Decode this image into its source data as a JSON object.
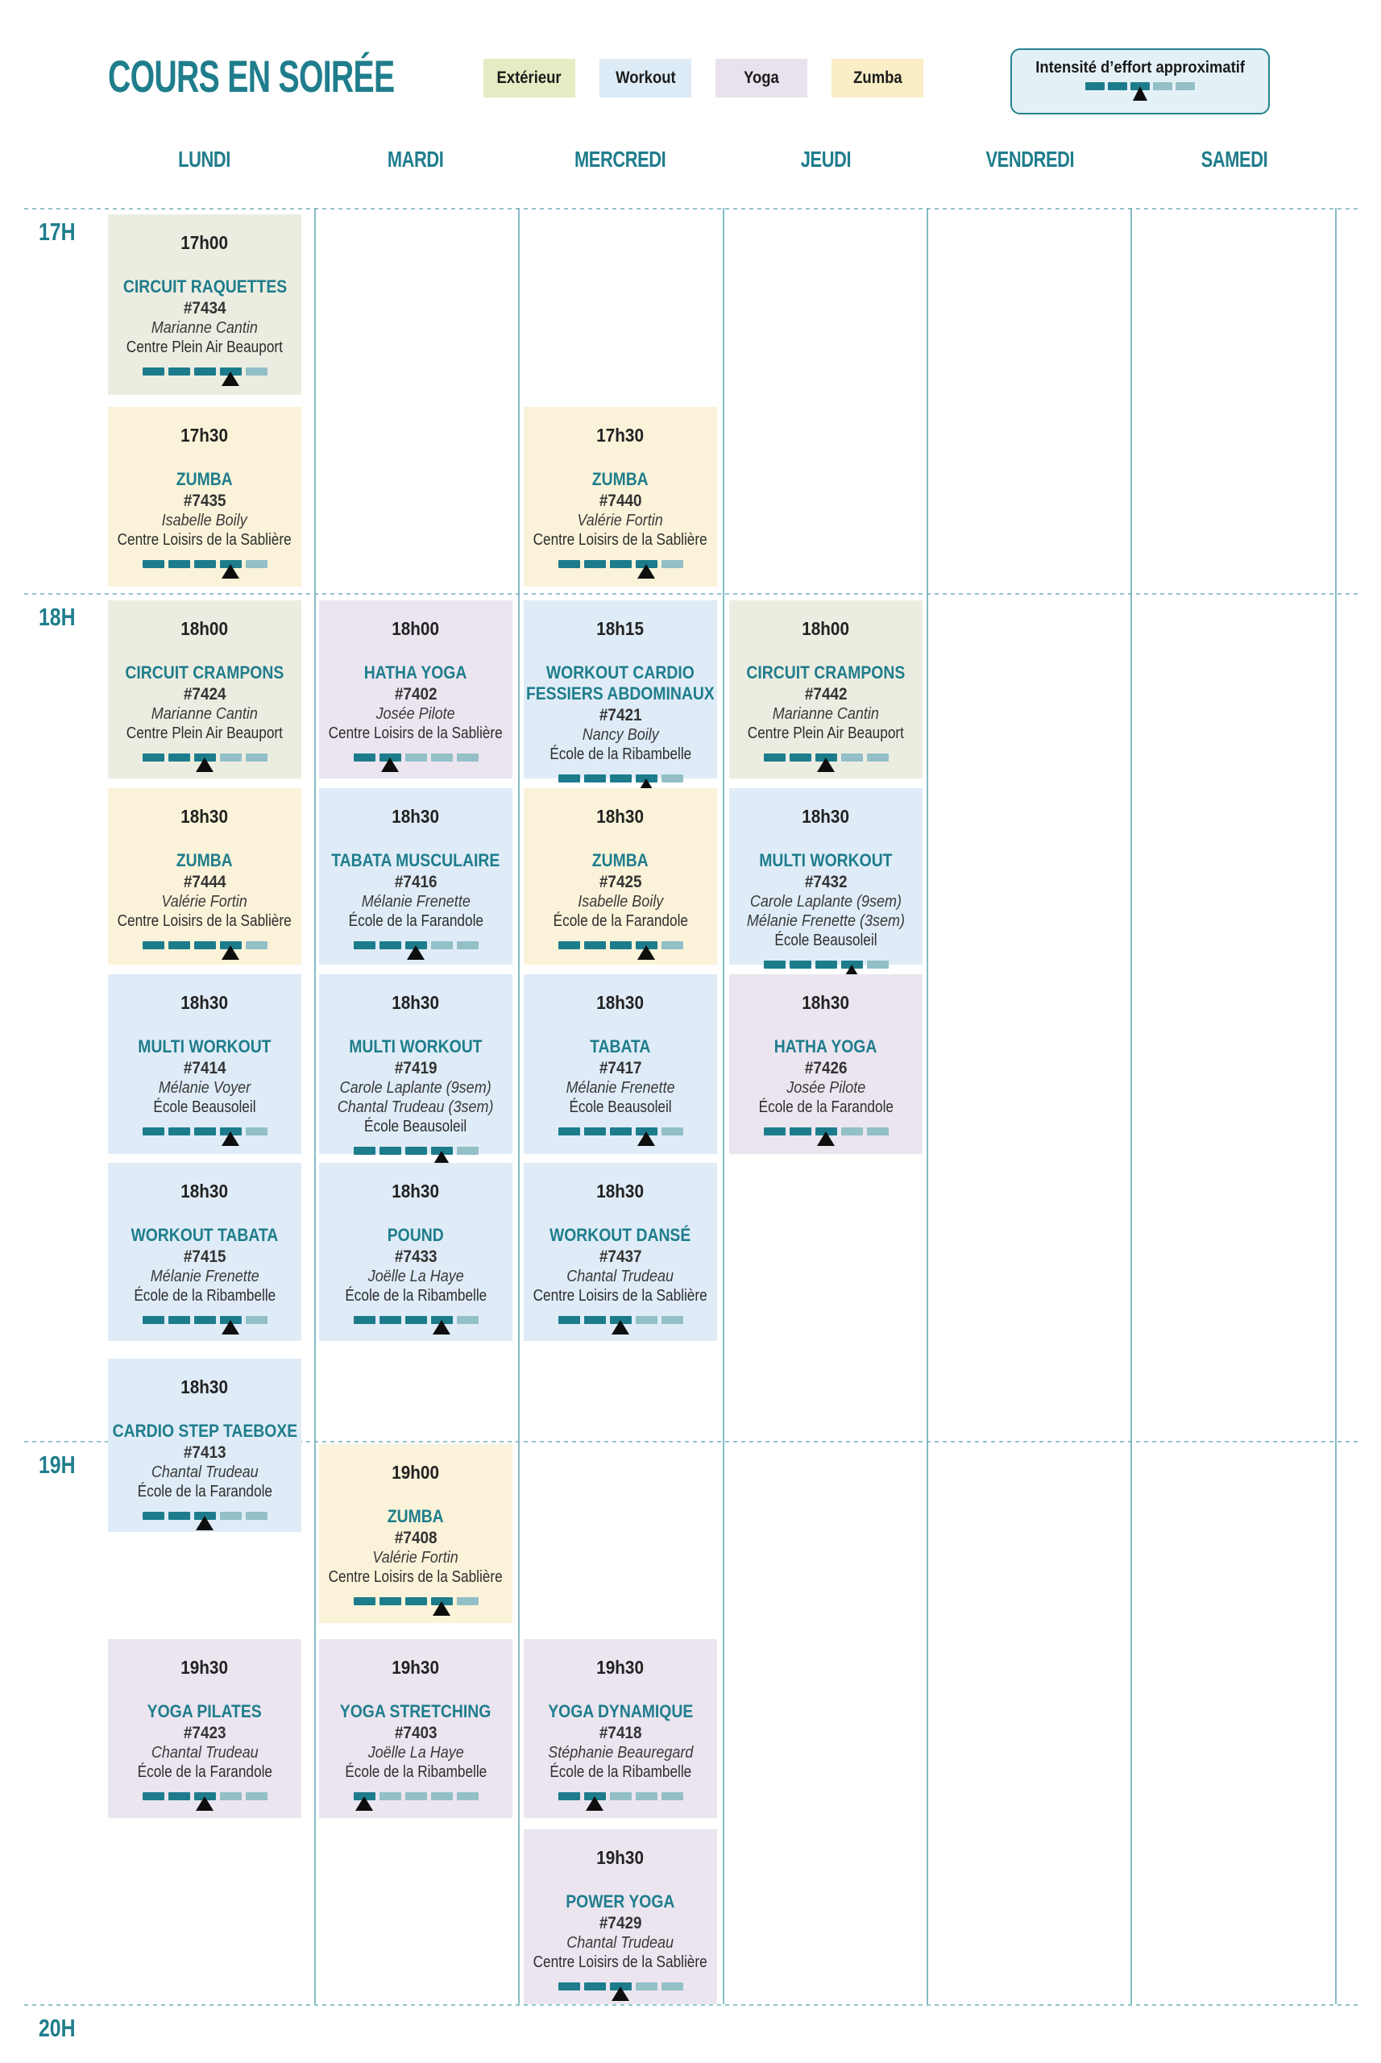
{
  "title": "COURS EN SOIRÉE",
  "legend": {
    "categories": [
      {
        "label": "Extérieur",
        "key": "exterieur"
      },
      {
        "label": "Workout",
        "key": "workout"
      },
      {
        "label": "Yoga",
        "key": "yoga"
      },
      {
        "label": "Zumba",
        "key": "zumba"
      }
    ],
    "intensity_label": "Intensité d’effort approximatif",
    "intensity_level": 3,
    "intensity_max": 5
  },
  "days": [
    "LUNDI",
    "MARDI",
    "MERCREDI",
    "JEUDI",
    "VENDREDI",
    "SAMEDI"
  ],
  "hours": [
    "17H",
    "18H",
    "19H",
    "20H"
  ],
  "colors": {
    "teal_text": "#1f7d8c",
    "dash_dark": "#1d7c8c",
    "dash_light": "#93bfc7",
    "marker": "#0e0e0e",
    "grid_line": "#93c4cc",
    "column_line": "#72afba",
    "intensity_box_bg": "#e3f1f6",
    "intensity_box_border": "#27808f",
    "chip_colors": {
      "exterieur": "#e4ecc3",
      "workout": "#ddebf6",
      "yoga": "#e9e2ee",
      "zumba": "#faeec6"
    },
    "card_colors": {
      "exterieur": "#ecede1",
      "workout": "#dfecf7",
      "yoga": "#ebe5f0",
      "zumba": "#faf3d9"
    }
  },
  "classes": [
    {
      "day": 0,
      "slot": "17h00",
      "time": "17h00",
      "name_lines": [
        "CIRCUIT RAQUETTES"
      ],
      "code": "#7434",
      "instructors": [
        "Marianne Cantin"
      ],
      "location": "Centre Plein Air Beauport",
      "category": "exterieur",
      "intensity": 4
    },
    {
      "day": 0,
      "slot": "17h30",
      "time": "17h30",
      "name_lines": [
        "ZUMBA"
      ],
      "code": "#7435",
      "instructors": [
        "Isabelle Boily"
      ],
      "location": "Centre Loisirs de la Sablière",
      "category": "zumba",
      "intensity": 4
    },
    {
      "day": 2,
      "slot": "17h30",
      "time": "17h30",
      "name_lines": [
        "ZUMBA"
      ],
      "code": "#7440",
      "instructors": [
        "Valérie Fortin"
      ],
      "location": "Centre Loisirs de la Sablière",
      "category": "zumba",
      "intensity": 4
    },
    {
      "day": 0,
      "slot": "18h00",
      "time": "18h00",
      "name_lines": [
        "CIRCUIT CRAMPONS"
      ],
      "code": "#7424",
      "instructors": [
        "Marianne Cantin"
      ],
      "location": "Centre Plein Air Beauport",
      "category": "exterieur",
      "intensity": 3
    },
    {
      "day": 1,
      "slot": "18h00",
      "time": "18h00",
      "name_lines": [
        "HATHA YOGA"
      ],
      "code": "#7402",
      "instructors": [
        "Josée Pilote"
      ],
      "location": "Centre Loisirs de la Sablière",
      "category": "yoga",
      "intensity": 2
    },
    {
      "day": 2,
      "slot": "18h00",
      "time": "18h15",
      "name_lines": [
        "WORKOUT CARDIO",
        "FESSIERS ABDOMINAUX"
      ],
      "code": "#7421",
      "instructors": [
        "Nancy Boily"
      ],
      "location": "École de la Ribambelle",
      "category": "workout",
      "intensity": 4
    },
    {
      "day": 3,
      "slot": "18h00",
      "time": "18h00",
      "name_lines": [
        "CIRCUIT CRAMPONS"
      ],
      "code": "#7442",
      "instructors": [
        "Marianne Cantin"
      ],
      "location": "Centre Plein Air Beauport",
      "category": "exterieur",
      "intensity": 3
    },
    {
      "day": 0,
      "slot": "18h30a",
      "time": "18h30",
      "name_lines": [
        "ZUMBA"
      ],
      "code": "#7444",
      "instructors": [
        "Valérie Fortin"
      ],
      "location": "Centre Loisirs de la Sablière",
      "category": "zumba",
      "intensity": 4
    },
    {
      "day": 1,
      "slot": "18h30a",
      "time": "18h30",
      "name_lines": [
        "TABATA MUSCULAIRE"
      ],
      "code": "#7416",
      "instructors": [
        "Mélanie Frenette"
      ],
      "location": "École de la Farandole",
      "category": "workout",
      "intensity": 3
    },
    {
      "day": 2,
      "slot": "18h30a",
      "time": "18h30",
      "name_lines": [
        "ZUMBA"
      ],
      "code": "#7425",
      "instructors": [
        "Isabelle Boily"
      ],
      "location": "École de la Farandole",
      "category": "zumba",
      "intensity": 4
    },
    {
      "day": 3,
      "slot": "18h30a",
      "time": "18h30",
      "name_lines": [
        "MULTI WORKOUT"
      ],
      "code": "#7432",
      "instructors": [
        "Carole Laplante (9sem)",
        "Mélanie Frenette (3sem)"
      ],
      "location": "École Beausoleil",
      "category": "workout",
      "intensity": 4
    },
    {
      "day": 0,
      "slot": "18h30b",
      "time": "18h30",
      "name_lines": [
        "MULTI WORKOUT"
      ],
      "code": "#7414",
      "instructors": [
        "Mélanie Voyer"
      ],
      "location": "École Beausoleil",
      "category": "workout",
      "intensity": 4
    },
    {
      "day": 1,
      "slot": "18h30b",
      "time": "18h30",
      "name_lines": [
        "MULTI WORKOUT"
      ],
      "code": "#7419",
      "instructors": [
        "Carole Laplante (9sem)",
        "Chantal Trudeau (3sem)"
      ],
      "location": "École Beausoleil",
      "category": "workout",
      "intensity": 4
    },
    {
      "day": 2,
      "slot": "18h30b",
      "time": "18h30",
      "name_lines": [
        "TABATA"
      ],
      "code": "#7417",
      "instructors": [
        "Mélanie Frenette"
      ],
      "location": "École Beausoleil",
      "category": "workout",
      "intensity": 4
    },
    {
      "day": 3,
      "slot": "18h30b",
      "time": "18h30",
      "name_lines": [
        "HATHA YOGA"
      ],
      "code": "#7426",
      "instructors": [
        "Josée Pilote"
      ],
      "location": "École de la Farandole",
      "category": "yoga",
      "intensity": 3
    },
    {
      "day": 0,
      "slot": "18h30c",
      "time": "18h30",
      "name_lines": [
        "WORKOUT TABATA"
      ],
      "code": "#7415",
      "instructors": [
        "Mélanie Frenette"
      ],
      "location": "École de la Ribambelle",
      "category": "workout",
      "intensity": 4
    },
    {
      "day": 1,
      "slot": "18h30c",
      "time": "18h30",
      "name_lines": [
        "POUND"
      ],
      "code": "#7433",
      "instructors": [
        "Joëlle La Haye"
      ],
      "location": "École de la Ribambelle",
      "category": "workout",
      "intensity": 4
    },
    {
      "day": 2,
      "slot": "18h30c",
      "time": "18h30",
      "name_lines": [
        "WORKOUT DANSÉ"
      ],
      "code": "#7437",
      "instructors": [
        "Chantal Trudeau"
      ],
      "location": "Centre Loisirs de la Sablière",
      "category": "workout",
      "intensity": 3
    },
    {
      "day": 0,
      "slot": "18h30d",
      "time": "18h30",
      "name_lines": [
        "CARDIO STEP TAEBOXE"
      ],
      "code": "#7413",
      "instructors": [
        "Chantal Trudeau"
      ],
      "location": "École de la Farandole",
      "category": "workout",
      "intensity": 3
    },
    {
      "day": 1,
      "slot": "19h00",
      "time": "19h00",
      "name_lines": [
        "ZUMBA"
      ],
      "code": "#7408",
      "instructors": [
        "Valérie Fortin"
      ],
      "location": "Centre Loisirs de la Sablière",
      "category": "zumba",
      "intensity": 4
    },
    {
      "day": 0,
      "slot": "19h30a",
      "time": "19h30",
      "name_lines": [
        "YOGA PILATES"
      ],
      "code": "#7423",
      "instructors": [
        "Chantal Trudeau"
      ],
      "location": "École de la Farandole",
      "category": "yoga",
      "intensity": 3
    },
    {
      "day": 1,
      "slot": "19h30a",
      "time": "19h30",
      "name_lines": [
        "YOGA STRETCHING"
      ],
      "code": "#7403",
      "instructors": [
        "Joëlle La Haye"
      ],
      "location": "École de la Ribambelle",
      "category": "yoga",
      "intensity": 1
    },
    {
      "day": 2,
      "slot": "19h30a",
      "time": "19h30",
      "name_lines": [
        "YOGA DYNAMIQUE"
      ],
      "code": "#7418",
      "instructors": [
        "Stéphanie Beauregard"
      ],
      "location": "École de la Ribambelle",
      "category": "yoga",
      "intensity": 2
    },
    {
      "day": 2,
      "slot": "19h30b",
      "time": "19h30",
      "name_lines": [
        "POWER YOGA"
      ],
      "code": "#7429",
      "instructors": [
        "Chantal Trudeau"
      ],
      "location": "Centre Loisirs de la Sablière",
      "category": "yoga",
      "intensity": 3
    }
  ]
}
